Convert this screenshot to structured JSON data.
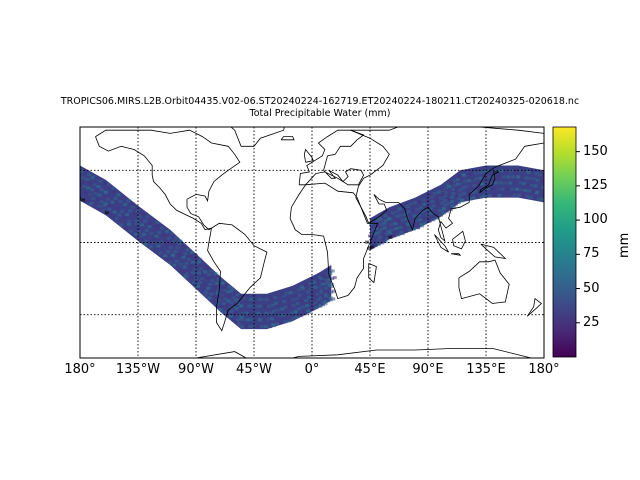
{
  "title": {
    "line1": "TROPICS06.MIRS.L2B.Orbit04435.V02-06.ST20240224-162719.ET20240224-180211.CT20240325-020618.nc",
    "line2": "Total Precipitable Water (mm)"
  },
  "map": {
    "projection": "PlateCarree",
    "lon_ticks": [
      {
        "lon": -180,
        "label": "180°"
      },
      {
        "lon": -135,
        "label": "135°W"
      },
      {
        "lon": -90,
        "label": "90°W"
      },
      {
        "lon": -45,
        "label": "45°W"
      },
      {
        "lon": 0,
        "label": "0°"
      },
      {
        "lon": 45,
        "label": "45°E"
      },
      {
        "lon": 90,
        "label": "90°E"
      },
      {
        "lon": 135,
        "label": "135°E"
      },
      {
        "lon": 180,
        "label": "180°"
      }
    ],
    "lat_gridlines": [
      45,
      0,
      -45
    ],
    "gridlines": true,
    "gridline_style": "dotted",
    "coastlines": true
  },
  "colorbar": {
    "label": "mm",
    "colormap": "viridis",
    "range": [
      0,
      168
    ],
    "ticks": [
      {
        "value": 25,
        "label": "25"
      },
      {
        "value": 50,
        "label": "50"
      },
      {
        "value": 75,
        "label": "75"
      },
      {
        "value": 100,
        "label": "100"
      },
      {
        "value": 125,
        "label": "125"
      },
      {
        "value": 150,
        "label": "150"
      }
    ],
    "colors": [
      "#440154",
      "#482878",
      "#3e4989",
      "#31688e",
      "#26828e",
      "#1f9e89",
      "#35b779",
      "#6ece58",
      "#b5de2b",
      "#fde725"
    ]
  },
  "swath": {
    "description_lonlat_centerline": [
      [
        -180,
        37
      ],
      [
        -160,
        28
      ],
      [
        -135,
        12
      ],
      [
        -110,
        -3
      ],
      [
        -90,
        -18
      ],
      [
        -70,
        -33
      ],
      [
        -55,
        -43
      ],
      [
        -35,
        -43
      ],
      [
        -15,
        -38
      ],
      [
        5,
        -30
      ],
      [
        15,
        -25
      ]
    ],
    "second_segment": [
      [
        45,
        5
      ],
      [
        60,
        12
      ],
      [
        80,
        18
      ],
      [
        100,
        26
      ],
      [
        115,
        35
      ],
      [
        135,
        38
      ],
      [
        160,
        38
      ],
      [
        180,
        35
      ]
    ],
    "dominant_value_mm": 30
  }
}
